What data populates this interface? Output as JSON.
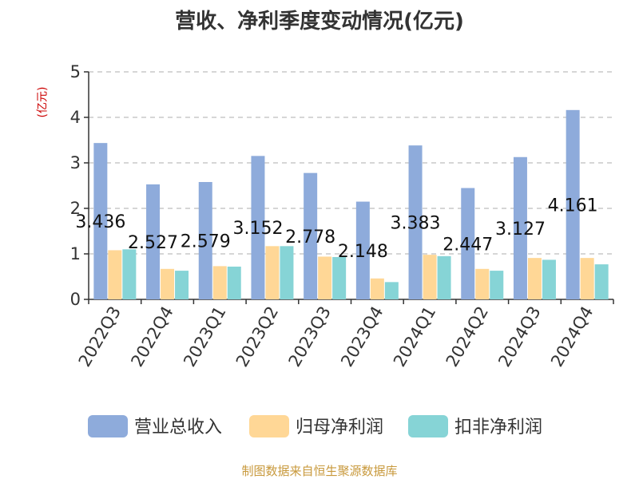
{
  "title": "营收、净利季度变动情况(亿元)",
  "unit_label": "(亿元)",
  "source": "制图数据来自恒生聚源数据库",
  "colors": {
    "revenue": "#8eabdb",
    "net_profit": "#ffd796",
    "deducted_profit": "#86d4d6"
  },
  "chart_data": {
    "type": "bar",
    "title": "营收、净利季度变动情况(亿元)",
    "ylabel": "(亿元)",
    "ylim": [
      0,
      5
    ],
    "yticks": [
      0,
      1,
      2,
      3,
      4,
      5
    ],
    "grid": true,
    "legend_position": "bottom",
    "categories": [
      "2022Q3",
      "2022Q4",
      "2023Q1",
      "2023Q2",
      "2023Q3",
      "2023Q4",
      "2024Q1",
      "2024Q2",
      "2024Q3",
      "2024Q4"
    ],
    "series": [
      {
        "name": "营业总收入",
        "values": [
          3.436,
          2.527,
          2.579,
          3.152,
          2.778,
          2.148,
          3.383,
          2.447,
          3.127,
          4.161
        ]
      },
      {
        "name": "归母净利润",
        "values": [
          1.08,
          0.67,
          0.73,
          1.17,
          0.94,
          0.46,
          0.98,
          0.67,
          0.91,
          0.91
        ]
      },
      {
        "name": "扣非净利润",
        "values": [
          1.1,
          0.63,
          0.72,
          1.17,
          0.93,
          0.38,
          0.95,
          0.63,
          0.87,
          0.77
        ]
      }
    ],
    "data_labels": [
      "3.436",
      "2.527",
      "2.579",
      "3.152",
      "2.778",
      "2.148",
      "3.383",
      "2.447",
      "3.127",
      "4.161"
    ]
  }
}
